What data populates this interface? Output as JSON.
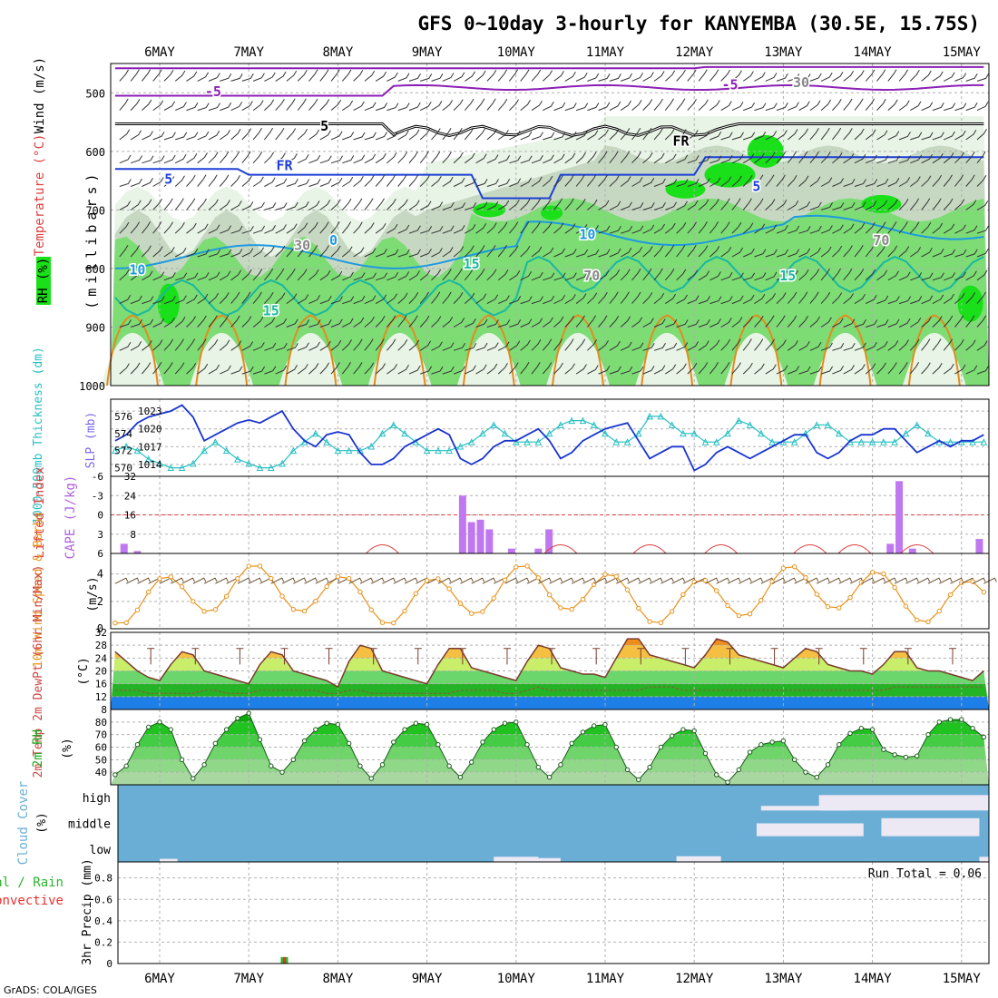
{
  "title": "GFS 0~10day 3-hourly for KANYEMBA (30.5E, 15.75S)",
  "footer": "GrADS: COLA/IGES",
  "dates": [
    "6MAY",
    "7MAY",
    "8MAY",
    "9MAY",
    "10MAY",
    "11MAY",
    "12MAY",
    "13MAY",
    "14MAY",
    "15MAY"
  ],
  "colors": {
    "grid": "#b0b0b0",
    "rh_light": "#e8f4e6",
    "rh_mid": "#c6d8c2",
    "rh_green": "#7ddc74",
    "rh_bright": "#19e019",
    "temp_purple": "#8b1fb5",
    "temp_blue": "#1d3fd6",
    "temp_lightblue": "#1e9ae0",
    "temp_teal": "#19b8a0",
    "temp_orange": "#e58a1c",
    "slp": "#1a35d0",
    "thickness": "#27bfc4",
    "cape": "#c078f0",
    "lifted": "#e04040",
    "wind10": "#e8921a",
    "cloud": "#6aaed6",
    "precip_total": "#2bb52b",
    "precip_conv": "#e83030"
  },
  "panels": {
    "upper": {
      "axis_pressure": "(millibars)",
      "legend_wind": "Wind (m/s)",
      "legend_temp": "Temperature (°C)",
      "legend_rh": "RH (%)",
      "y_ticks": [
        "500",
        "600",
        "700",
        "800",
        "900",
        "1000"
      ],
      "contour_labels": [
        "-5",
        "-5",
        "5",
        "FR",
        "FR",
        "5",
        "5",
        "0",
        "10",
        "10",
        "15",
        "15",
        "15",
        "30",
        "30",
        "70",
        "70"
      ]
    },
    "slp": {
      "label_left": "1000-500mb Thickness (dm)",
      "label_right": "SLP (mb)",
      "left_ticks": [
        "576",
        "574",
        "572",
        "570"
      ],
      "right_ticks": [
        "1023",
        "1020",
        "1017",
        "1014"
      ]
    },
    "cape": {
      "label_left": "Lifted Index",
      "label_right": "CAPE (J/kg)",
      "left_ticks": [
        "-6",
        "-3",
        "0",
        "3",
        "6"
      ],
      "right_ticks": [
        "32",
        "24",
        "16",
        "8"
      ]
    },
    "wind10": {
      "label": "10m Wind Speed & Barbs",
      "unit": "(m/s)",
      "ticks": [
        "4",
        "2",
        "0"
      ]
    },
    "temp2m": {
      "label": "2m Temp 2m DewPt (6hr Min/Max)",
      "unit": "(°C)",
      "ticks": [
        "32",
        "28",
        "24",
        "20",
        "16",
        "12",
        "8"
      ]
    },
    "rh2m": {
      "label": "2m RH",
      "unit": "(%)",
      "ticks": [
        "80",
        "70",
        "60",
        "50",
        "40"
      ]
    },
    "cloud": {
      "label": "Cloud Cover",
      "unit": "(%)",
      "levels": [
        "high",
        "middle",
        "low"
      ]
    },
    "precip": {
      "label": "3hr Precip (mm)",
      "legend_total": "Total / Rain",
      "legend_conv": "Convective",
      "run_total": "Run Total = 0.06",
      "ticks": [
        "0.8",
        "0.6",
        "0.4",
        "0.2",
        "0"
      ]
    }
  },
  "chart_data": [
    {
      "type": "line",
      "title": "SLP (mb)",
      "x": [
        "5.5",
        "5.625",
        "5.75",
        "5.875",
        "6",
        "6.125",
        "6.25",
        "6.375",
        "6.5",
        "6.625",
        "6.75",
        "6.875",
        "7",
        "7.125",
        "7.25",
        "7.375",
        "7.5",
        "7.625",
        "7.75",
        "7.875",
        "8",
        "8.125",
        "8.25",
        "8.375",
        "8.5",
        "8.625",
        "8.75",
        "8.875",
        "9",
        "9.125",
        "9.25",
        "9.375",
        "9.5",
        "9.625",
        "9.75",
        "9.875",
        "10",
        "10.125",
        "10.25",
        "10.375",
        "10.5",
        "10.625",
        "10.75",
        "10.875",
        "11",
        "11.125",
        "11.25",
        "11.375",
        "11.5",
        "11.625",
        "11.75",
        "11.875",
        "12",
        "12.125",
        "12.25",
        "12.375",
        "12.5",
        "12.625",
        "12.75",
        "12.875",
        "13",
        "13.125",
        "13.25",
        "13.375",
        "13.5",
        "13.625",
        "13.75",
        "13.875",
        "14",
        "14.125",
        "14.25",
        "14.375",
        "14.5",
        "14.625",
        "14.75",
        "14.875",
        "15",
        "15.125",
        "15.25"
      ],
      "series": [
        {
          "name": "SLP (mb)",
          "values": [
            1018,
            1019,
            1021,
            1022,
            1022.5,
            1023,
            1024,
            1022,
            1018,
            1019,
            1020,
            1021,
            1021.5,
            1021,
            1022,
            1023,
            1020,
            1018,
            1017,
            1019,
            1019.5,
            1019,
            1016,
            1014,
            1014,
            1015,
            1017,
            1018,
            1019,
            1020,
            1019,
            1015,
            1014,
            1015,
            1017,
            1018,
            1018,
            1019,
            1020,
            1018,
            1015,
            1016,
            1018,
            1019,
            1020,
            1020.5,
            1021,
            1018,
            1015,
            1016,
            1017,
            1017,
            1013,
            1014,
            1016,
            1017,
            1016,
            1015,
            1016,
            1017,
            1018,
            1019,
            1019,
            1016,
            1015,
            1016,
            1018,
            1019,
            1019,
            1020,
            1020,
            1018,
            1016,
            1017,
            1018,
            1017,
            1018,
            1018,
            1019
          ]
        },
        {
          "name": "1000-500mb Thickness (dm)",
          "values": [
            572,
            572.5,
            572,
            571,
            570.5,
            570,
            570,
            570.5,
            572,
            573,
            572,
            571,
            570.5,
            570,
            570,
            570.5,
            572,
            573,
            574,
            573,
            572,
            572,
            572,
            572.5,
            574,
            575,
            574,
            573,
            572,
            572,
            572,
            572.5,
            573,
            574,
            575,
            574,
            573,
            573,
            573,
            574,
            575,
            575.5,
            575.5,
            575,
            574,
            573,
            573,
            574,
            576,
            576,
            575,
            574,
            574,
            573,
            573,
            574,
            575.5,
            575,
            574,
            573,
            573,
            573,
            574,
            575,
            575,
            574,
            573,
            573,
            573,
            573,
            573,
            574,
            575,
            574,
            573,
            573,
            573,
            573,
            573
          ]
        }
      ],
      "ylim": [
        1012,
        1025
      ]
    },
    {
      "type": "bar",
      "title": "CAPE (J/kg)",
      "x": [
        "5.6",
        "5.75",
        "9.4",
        "9.5",
        "9.6",
        "9.7",
        "9.95",
        "10.25",
        "10.37",
        "14.2",
        "14.3",
        "14.45",
        "15.2"
      ],
      "values": [
        4,
        1,
        24,
        13,
        14,
        10,
        2,
        2,
        10,
        4,
        30,
        2,
        6
      ],
      "ylim": [
        0,
        32
      ]
    },
    {
      "type": "line",
      "title": "2m Temp (°C)",
      "x": [
        "5.5",
        "5.625",
        "5.75",
        "5.875",
        "6",
        "6.125",
        "6.25",
        "6.375",
        "6.5",
        "6.625",
        "6.75",
        "6.875",
        "7",
        "7.125",
        "7.25",
        "7.375",
        "7.5",
        "7.625",
        "7.75",
        "7.875",
        "8",
        "8.125",
        "8.25",
        "8.375",
        "8.5",
        "8.625",
        "8.75",
        "8.875",
        "9",
        "9.125",
        "9.25",
        "9.375",
        "9.5",
        "9.625",
        "9.75",
        "9.875",
        "10",
        "10.125",
        "10.25",
        "10.375",
        "10.5",
        "10.625",
        "10.75",
        "10.875",
        "11",
        "11.125",
        "11.25",
        "11.375",
        "11.5",
        "11.625",
        "11.75",
        "11.875",
        "12",
        "12.125",
        "12.25",
        "12.375",
        "12.5",
        "12.625",
        "12.75",
        "12.875",
        "13",
        "13.125",
        "13.25",
        "13.375",
        "13.5",
        "13.625",
        "13.75",
        "13.875",
        "14",
        "14.125",
        "14.25",
        "14.375",
        "14.5",
        "14.625",
        "14.75",
        "14.875",
        "15",
        "15.125",
        "15.25"
      ],
      "series": [
        {
          "name": "2m Temp",
          "values": [
            26,
            23,
            20,
            18,
            17,
            22,
            26,
            25,
            20,
            19,
            18,
            17,
            16,
            22,
            26,
            25,
            20,
            19,
            18,
            17,
            15,
            23,
            28,
            27,
            20,
            19,
            18,
            17,
            16,
            22,
            27,
            27,
            21,
            20,
            19,
            18,
            17,
            23,
            28,
            27,
            21,
            20,
            19,
            19,
            18,
            24,
            30,
            30,
            25,
            24,
            23,
            22,
            21,
            25,
            30,
            29,
            25,
            24,
            23,
            22,
            21,
            24,
            27,
            26,
            22,
            21,
            20,
            20,
            19,
            22,
            26,
            26,
            21,
            20,
            20,
            19,
            18,
            17,
            20
          ]
        },
        {
          "name": "2m DewPt",
          "values": [
            14,
            14,
            14,
            13,
            13,
            13,
            13,
            13,
            14,
            14,
            13,
            13,
            13,
            14,
            14,
            14,
            14,
            14,
            14,
            13,
            13,
            14,
            14,
            13,
            13,
            13,
            13,
            13,
            13,
            13,
            13,
            14,
            14,
            14,
            14,
            13,
            13,
            14,
            15,
            14,
            14,
            14,
            14,
            14,
            14,
            14,
            14,
            14,
            15,
            15,
            15,
            14,
            14,
            14,
            14,
            14,
            14,
            14,
            14,
            14,
            14,
            14,
            14,
            14,
            14,
            14,
            14,
            14,
            14,
            14,
            15,
            15,
            15,
            15,
            15,
            15,
            15,
            15,
            15
          ]
        }
      ],
      "ylim": [
        8,
        32
      ]
    },
    {
      "type": "area",
      "title": "2m RH (%)",
      "x": [
        "5.5",
        "5.625",
        "5.75",
        "5.875",
        "6",
        "6.125",
        "6.25",
        "6.375",
        "6.5",
        "6.625",
        "6.75",
        "6.875",
        "7",
        "7.125",
        "7.25",
        "7.375",
        "7.5",
        "7.625",
        "7.75",
        "7.875",
        "8",
        "8.125",
        "8.25",
        "8.375",
        "8.5",
        "8.625",
        "8.75",
        "8.875",
        "9",
        "9.125",
        "9.25",
        "9.375",
        "9.5",
        "9.625",
        "9.75",
        "9.875",
        "10",
        "10.125",
        "10.25",
        "10.375",
        "10.5",
        "10.625",
        "10.75",
        "10.875",
        "11",
        "11.125",
        "11.25",
        "11.375",
        "11.5",
        "11.625",
        "11.75",
        "11.875",
        "12",
        "12.125",
        "12.25",
        "12.375",
        "12.5",
        "12.625",
        "12.75",
        "12.875",
        "13",
        "13.125",
        "13.25",
        "13.375",
        "13.5",
        "13.625",
        "13.75",
        "13.875",
        "14",
        "14.125",
        "14.25",
        "14.375",
        "14.5",
        "14.625",
        "14.75",
        "14.875",
        "15",
        "15.125",
        "15.25"
      ],
      "values": [
        38,
        45,
        62,
        76,
        80,
        74,
        50,
        35,
        46,
        63,
        74,
        83,
        87,
        66,
        45,
        40,
        50,
        65,
        74,
        79,
        78,
        63,
        45,
        35,
        46,
        64,
        74,
        79,
        78,
        62,
        45,
        36,
        48,
        64,
        74,
        79,
        80,
        62,
        44,
        36,
        46,
        63,
        72,
        77,
        78,
        60,
        42,
        34,
        44,
        60,
        69,
        74,
        73,
        55,
        38,
        32,
        42,
        56,
        62,
        64,
        65,
        50,
        40,
        36,
        46,
        62,
        71,
        75,
        74,
        58,
        54,
        52,
        53,
        70,
        80,
        82,
        82,
        75,
        68
      ],
      "ylim": [
        30,
        90
      ]
    },
    {
      "type": "bar",
      "title": "3hr Precip (mm)",
      "x": [
        "7.4"
      ],
      "series": [
        {
          "name": "Total / Rain",
          "values": [
            0.06
          ]
        },
        {
          "name": "Convective",
          "values": [
            0.06
          ]
        }
      ],
      "ylim": [
        0,
        0.9
      ]
    }
  ]
}
